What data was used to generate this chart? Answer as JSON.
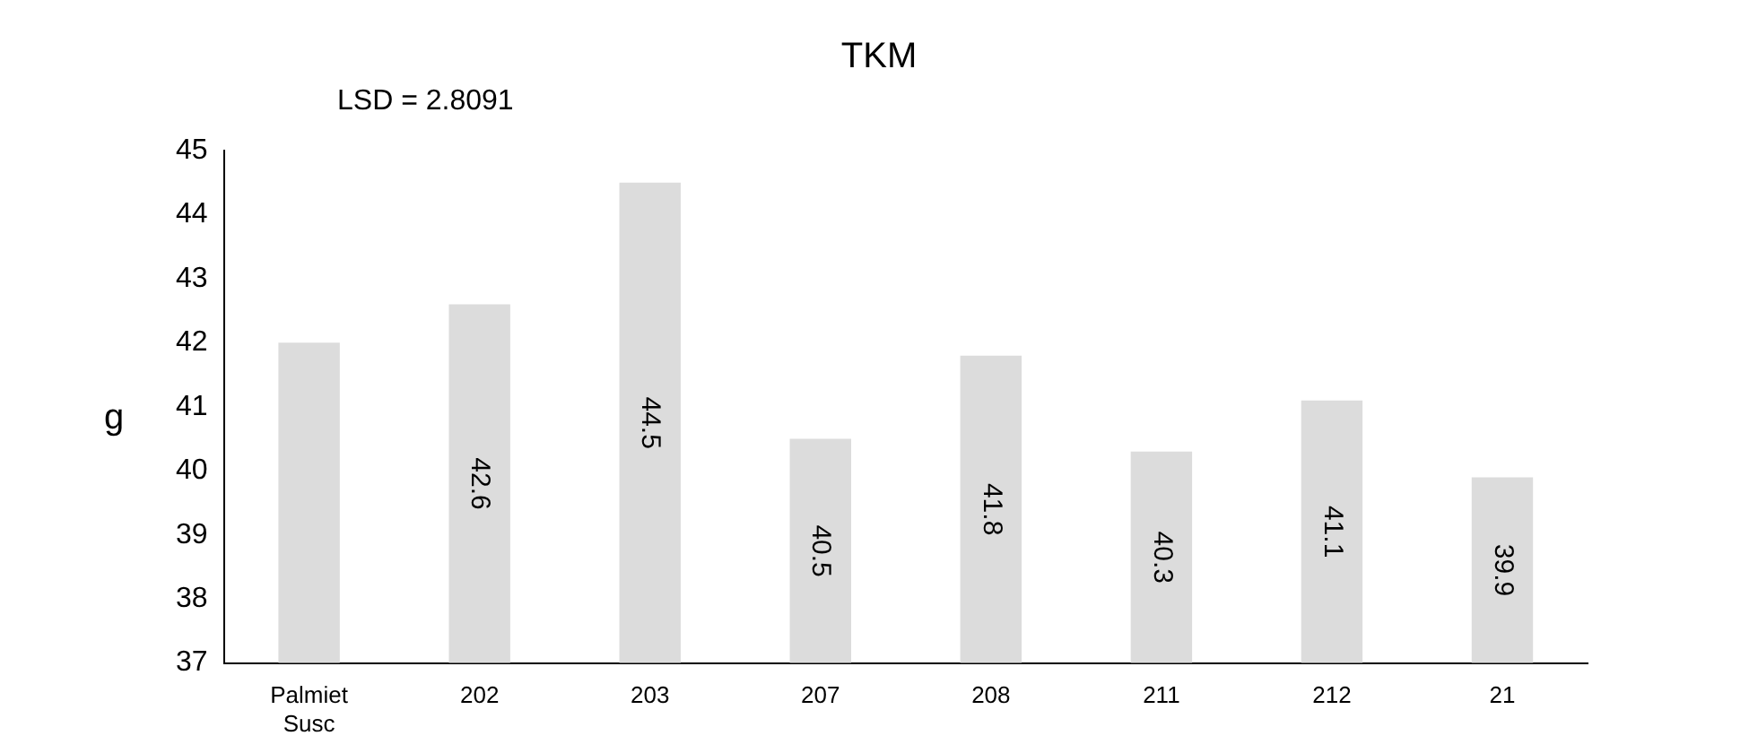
{
  "chart_data": {
    "type": "bar",
    "title": "TKM",
    "ylabel": "g",
    "categories": [
      "Palmiet Susc",
      "202",
      "203",
      "207",
      "208",
      "211",
      "212",
      "21"
    ],
    "values": [
      42,
      42.6,
      44.5,
      40.5,
      41.8,
      40.3,
      41.1,
      39.9
    ],
    "value_labels": [
      null,
      "42.6",
      "44.5",
      "40.5",
      "41.8",
      "40.3",
      "41.1",
      "39.9"
    ],
    "color": "#dcdcdc",
    "ylim": [
      37,
      45
    ],
    "yticks": [
      37,
      38,
      39,
      40,
      41,
      42,
      43,
      44,
      45
    ],
    "grid": false,
    "legend": false,
    "annotations": [
      "LSD = 2.8091"
    ]
  }
}
